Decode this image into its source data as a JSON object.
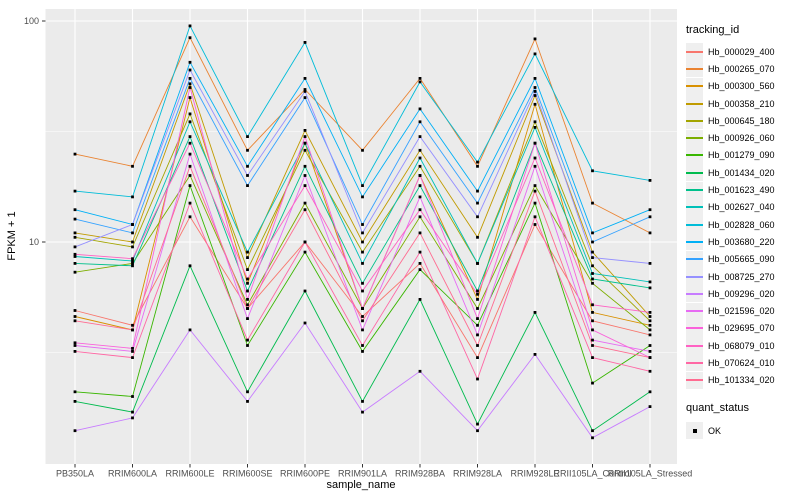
{
  "figure": {
    "background": "#FFFFFF",
    "panel_background": "#EBEBEB",
    "gridline_color": "#FFFFFF",
    "axis_text_color": "#4D4D4D",
    "tick_mark_color": "#333333",
    "point_color": "#000000",
    "legend_key_background": "#EFEFEF"
  },
  "axes": {
    "y_title": "FPKM + 1",
    "x_title": "sample_name",
    "y_tick_labels": [
      "100",
      "10"
    ]
  },
  "legend": {
    "tracking_title": "tracking_id",
    "quant_title": "quant_status",
    "quant_items": [
      {
        "label": "OK",
        "shape": "filled-square",
        "color": "#000000"
      }
    ]
  },
  "chart_data": {
    "type": "line",
    "title": "",
    "xlabel": "sample_name",
    "ylabel": "FPKM + 1",
    "y_scale": "log10",
    "ylim": [
      1,
      112
    ],
    "y_tick_values": [
      10,
      100
    ],
    "y_minor_gridlines": [
      3.162,
      31.62
    ],
    "grid": true,
    "legend_position": "right",
    "point_marker": "black-square",
    "categories": [
      "PB350LA",
      "RRIM600LA",
      "RRIM600LE",
      "RRIM600SE",
      "RRIM600PE",
      "RRIM901LA",
      "RRIM928BA",
      "RRIM928LA",
      "RRIM928LE",
      "RRII105LA_Control",
      "RRII105LA_Stressed"
    ],
    "series": [
      {
        "name": "Hb_000029_400",
        "color": "#F8766D",
        "values": [
          4.9,
          4.2,
          13,
          5,
          10,
          4.6,
          8,
          3,
          12,
          4.4,
          3.8
        ]
      },
      {
        "name": "Hb_000265_070",
        "color": "#EA8331",
        "values": [
          25,
          22,
          84,
          26,
          49,
          26,
          55,
          22,
          83,
          15,
          11
        ]
      },
      {
        "name": "Hb_000300_560",
        "color": "#D89000",
        "values": [
          4.6,
          4,
          45,
          6.5,
          28,
          5,
          20,
          5.5,
          42,
          4.8,
          4.2
        ]
      },
      {
        "name": "Hb_000358_210",
        "color": "#C09B00",
        "values": [
          11,
          10,
          52,
          8.5,
          32,
          10,
          26,
          10.5,
          46,
          9,
          4.6
        ]
      },
      {
        "name": "Hb_000645_180",
        "color": "#A3A500",
        "values": [
          10.5,
          9.5,
          38,
          7.5,
          26,
          9,
          22,
          8,
          35,
          7.8,
          4.4
        ]
      },
      {
        "name": "Hb_000926_060",
        "color": "#7CAE00",
        "values": [
          7.3,
          8,
          20,
          5.2,
          15,
          5,
          13,
          5,
          18,
          6.5,
          4
        ]
      },
      {
        "name": "Hb_001279_090",
        "color": "#39B600",
        "values": [
          2.1,
          2,
          18,
          3.4,
          9,
          3.2,
          7.5,
          4.2,
          15,
          2.3,
          3.4
        ]
      },
      {
        "name": "Hb_001434_020",
        "color": "#00BB4E",
        "values": [
          1.9,
          1.7,
          7.8,
          2.1,
          6,
          1.9,
          5.5,
          1.5,
          4.8,
          1.4,
          2.1
        ]
      },
      {
        "name": "Hb_001623_490",
        "color": "#00C08B",
        "values": [
          8,
          7.8,
          30,
          6,
          22,
          6.5,
          18,
          6,
          28,
          6.8,
          6.2
        ]
      },
      {
        "name": "Hb_002627_040",
        "color": "#00C0B8",
        "values": [
          8.6,
          8.2,
          35,
          9,
          28,
          8,
          24,
          8,
          33,
          7.2,
          6.6
        ]
      },
      {
        "name": "Hb_002828_060",
        "color": "#00BCD8",
        "values": [
          17,
          16,
          95,
          30,
          80,
          18,
          53,
          23,
          71,
          21,
          19
        ]
      },
      {
        "name": "Hb_003680_220",
        "color": "#00B0F6",
        "values": [
          14,
          12,
          65,
          22,
          55,
          16,
          40,
          17,
          55,
          11,
          14
        ]
      },
      {
        "name": "Hb_005665_090",
        "color": "#35A2FF",
        "values": [
          12.7,
          11,
          55,
          18,
          45,
          12,
          35,
          15,
          50,
          10,
          13
        ]
      },
      {
        "name": "Hb_008725_270",
        "color": "#9590FF",
        "values": [
          9.5,
          12,
          60,
          20,
          48,
          11,
          30,
          13,
          48,
          8.5,
          8
        ]
      },
      {
        "name": "Hb_009296_020",
        "color": "#C77CFF",
        "values": [
          1.4,
          1.6,
          4,
          1.9,
          4.3,
          1.7,
          2.6,
          1.4,
          3.1,
          1.3,
          1.8
        ]
      },
      {
        "name": "Hb_021596_020",
        "color": "#E76BF3",
        "values": [
          3.4,
          3.2,
          25,
          4.5,
          20,
          4,
          16,
          3.8,
          22,
          3.6,
          3.2
        ]
      },
      {
        "name": "Hb_029695_070",
        "color": "#FA62DB",
        "values": [
          3.5,
          3.3,
          50,
          5.5,
          30,
          5,
          20,
          4.5,
          28,
          4,
          3
        ]
      },
      {
        "name": "Hb_068079_010",
        "color": "#FF61C3",
        "values": [
          8.8,
          8.4,
          28,
          6.8,
          18,
          6,
          14,
          5.8,
          24,
          5.2,
          4.8
        ]
      },
      {
        "name": "Hb_070624_010",
        "color": "#FF67A4",
        "values": [
          3.2,
          3,
          15,
          3.6,
          10,
          3.4,
          9,
          2.4,
          13,
          3,
          2.6
        ]
      },
      {
        "name": "Hb_101334_020",
        "color": "#FF6C91",
        "values": [
          4.4,
          4,
          22,
          5,
          14,
          4.4,
          11,
          3.4,
          17,
          3.4,
          3
        ]
      }
    ]
  }
}
